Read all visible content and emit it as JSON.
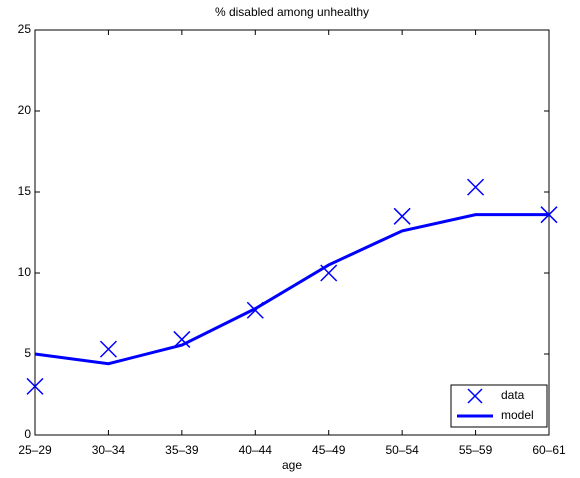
{
  "chart_data": {
    "type": "line",
    "title": "% disabled among unhealthy",
    "x_label": "age",
    "categories": [
      "25–29",
      "30–34",
      "35–39",
      "40–44",
      "45–49",
      "50–54",
      "55–59",
      "60–61"
    ],
    "series": [
      {
        "name": "data",
        "color": "#0000ff",
        "mode": "markers",
        "values": [
          3.0,
          5.3,
          5.9,
          7.7,
          10.0,
          13.5,
          15.3,
          13.6
        ]
      },
      {
        "name": "model",
        "color": "#0000ff",
        "mode": "lines",
        "values": [
          5.0,
          4.4,
          5.55,
          7.8,
          10.5,
          12.6,
          13.6,
          13.6
        ]
      }
    ],
    "ylim": [
      0,
      25
    ],
    "yticks": [
      0,
      5,
      10,
      15,
      20,
      25
    ],
    "grid": false,
    "legend": "lower right"
  }
}
